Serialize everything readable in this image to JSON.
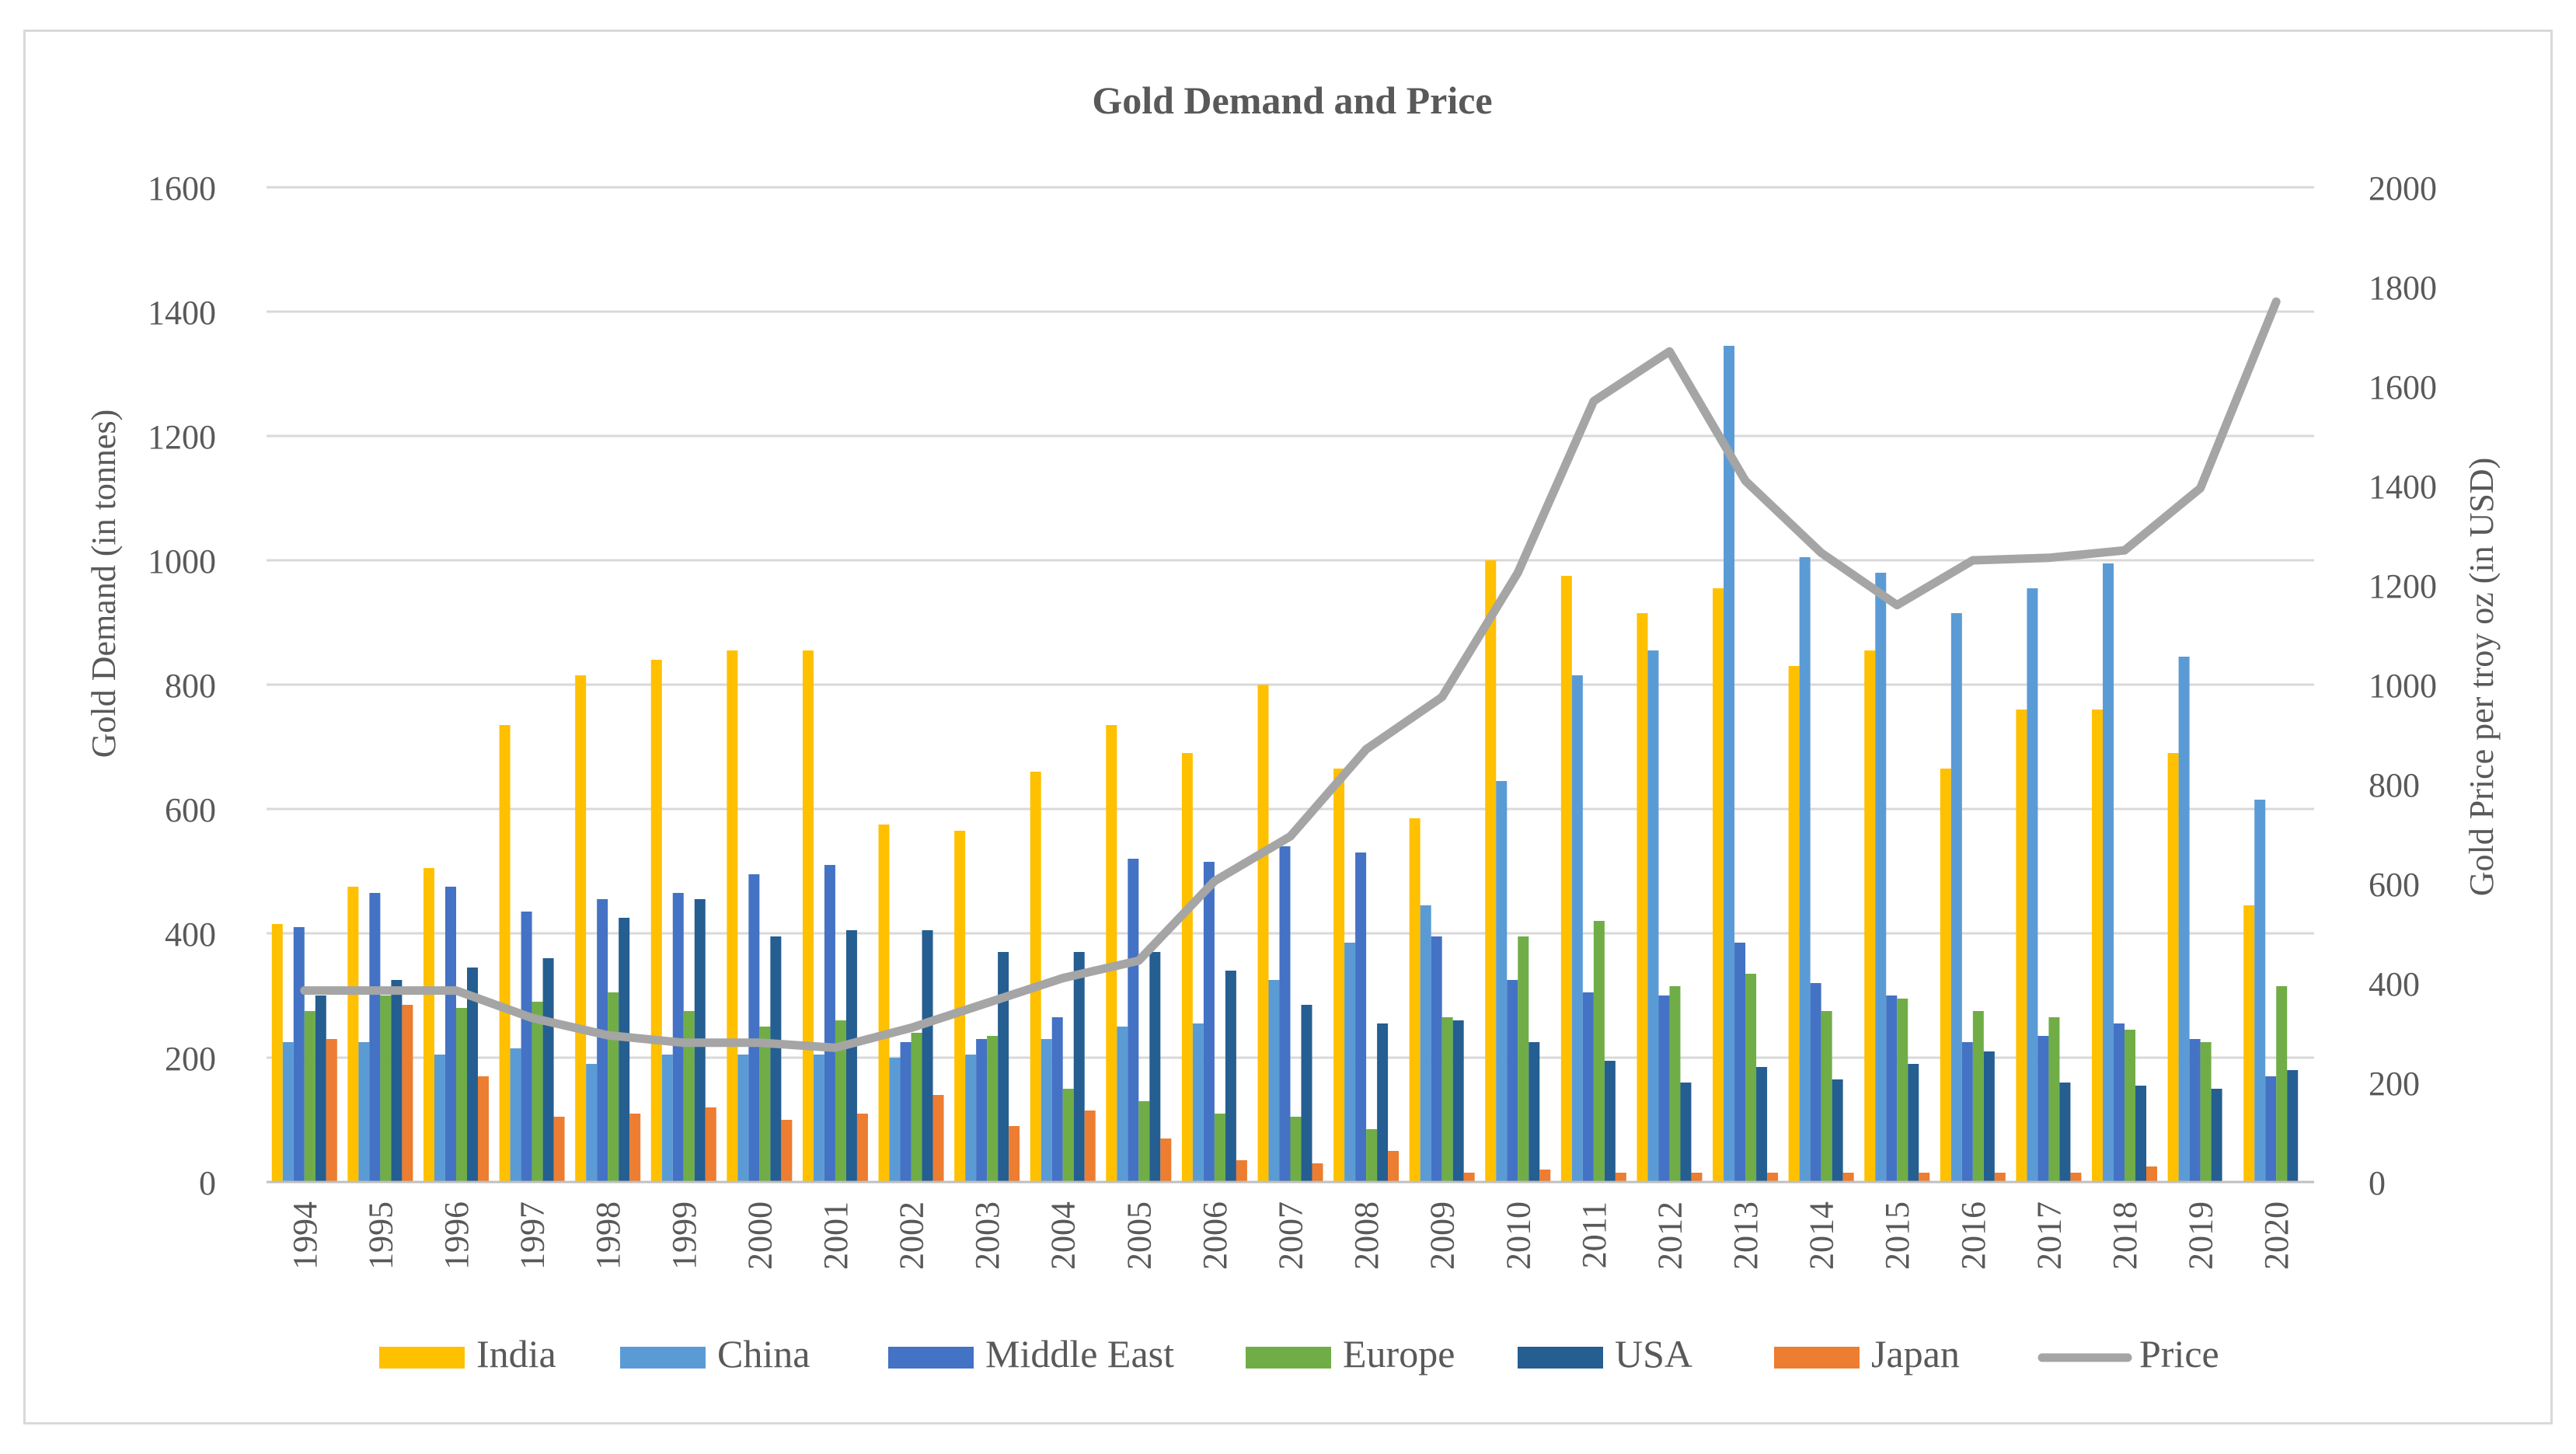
{
  "chart_data": {
    "type": "bar",
    "title": "Gold Demand and Price",
    "ylabel": "Gold Demand (in tonnes)",
    "y2label": "Gold Price per troy oz (in USD)",
    "xlabel": "",
    "ylim": [
      0,
      1600
    ],
    "y2lim": [
      0,
      2000
    ],
    "yticks": [
      "0",
      "200",
      "400",
      "600",
      "800",
      "1000",
      "1200",
      "1400",
      "1600"
    ],
    "y2ticks": [
      "0",
      "200",
      "400",
      "600",
      "800",
      "1000",
      "1200",
      "1400",
      "1600",
      "1800",
      "2000"
    ],
    "grid": true,
    "legend_position": "bottom",
    "categories": [
      "1994",
      "1995",
      "1996",
      "1997",
      "1998",
      "1999",
      "2000",
      "2001",
      "2002",
      "2003",
      "2004",
      "2005",
      "2006",
      "2007",
      "2008",
      "2009",
      "2010",
      "2011",
      "2012",
      "2013",
      "2014",
      "2015",
      "2016",
      "2017",
      "2018",
      "2019",
      "2020"
    ],
    "series": [
      {
        "name": "India",
        "color": "#ffc000",
        "values": [
          415,
          475,
          505,
          735,
          815,
          840,
          855,
          855,
          575,
          565,
          660,
          735,
          690,
          800,
          665,
          585,
          1000,
          975,
          915,
          955,
          830,
          855,
          665,
          760,
          760,
          690,
          445
        ]
      },
      {
        "name": "China",
        "color": "#5b9bd5",
        "values": [
          225,
          225,
          205,
          215,
          190,
          205,
          205,
          205,
          200,
          205,
          230,
          250,
          255,
          325,
          385,
          445,
          645,
          815,
          855,
          1345,
          1005,
          980,
          915,
          955,
          995,
          845,
          615
        ]
      },
      {
        "name": "Middle East",
        "color": "#4472c4",
        "values": [
          410,
          465,
          475,
          435,
          455,
          465,
          495,
          510,
          225,
          230,
          265,
          520,
          515,
          540,
          530,
          395,
          325,
          305,
          300,
          385,
          320,
          300,
          225,
          235,
          255,
          230,
          170
        ]
      },
      {
        "name": "Europe",
        "color": "#70ad47",
        "values": [
          275,
          300,
          280,
          290,
          305,
          275,
          250,
          260,
          240,
          235,
          150,
          130,
          110,
          105,
          85,
          265,
          395,
          420,
          315,
          335,
          275,
          295,
          275,
          265,
          245,
          225,
          315
        ]
      },
      {
        "name": "USA",
        "color": "#255e91",
        "values": [
          300,
          325,
          345,
          360,
          425,
          455,
          395,
          405,
          405,
          370,
          370,
          370,
          340,
          285,
          255,
          260,
          225,
          195,
          160,
          185,
          165,
          190,
          210,
          160,
          155,
          150,
          180
        ]
      },
      {
        "name": "Japan",
        "color": "#ed7d31",
        "values": [
          230,
          285,
          170,
          105,
          110,
          120,
          100,
          110,
          140,
          90,
          115,
          70,
          35,
          30,
          50,
          15,
          20,
          15,
          15,
          15,
          15,
          15,
          15,
          15,
          25,
          0,
          0
        ]
      }
    ],
    "line_series": {
      "name": "Price",
      "color": "#a5a5a5",
      "axis": "right",
      "values": [
        385,
        385,
        385,
        330,
        295,
        280,
        280,
        270,
        310,
        360,
        410,
        445,
        605,
        695,
        870,
        975,
        1225,
        1570,
        1670,
        1410,
        1265,
        1160,
        1250,
        1255,
        1270,
        1395,
        1770
      ]
    }
  }
}
